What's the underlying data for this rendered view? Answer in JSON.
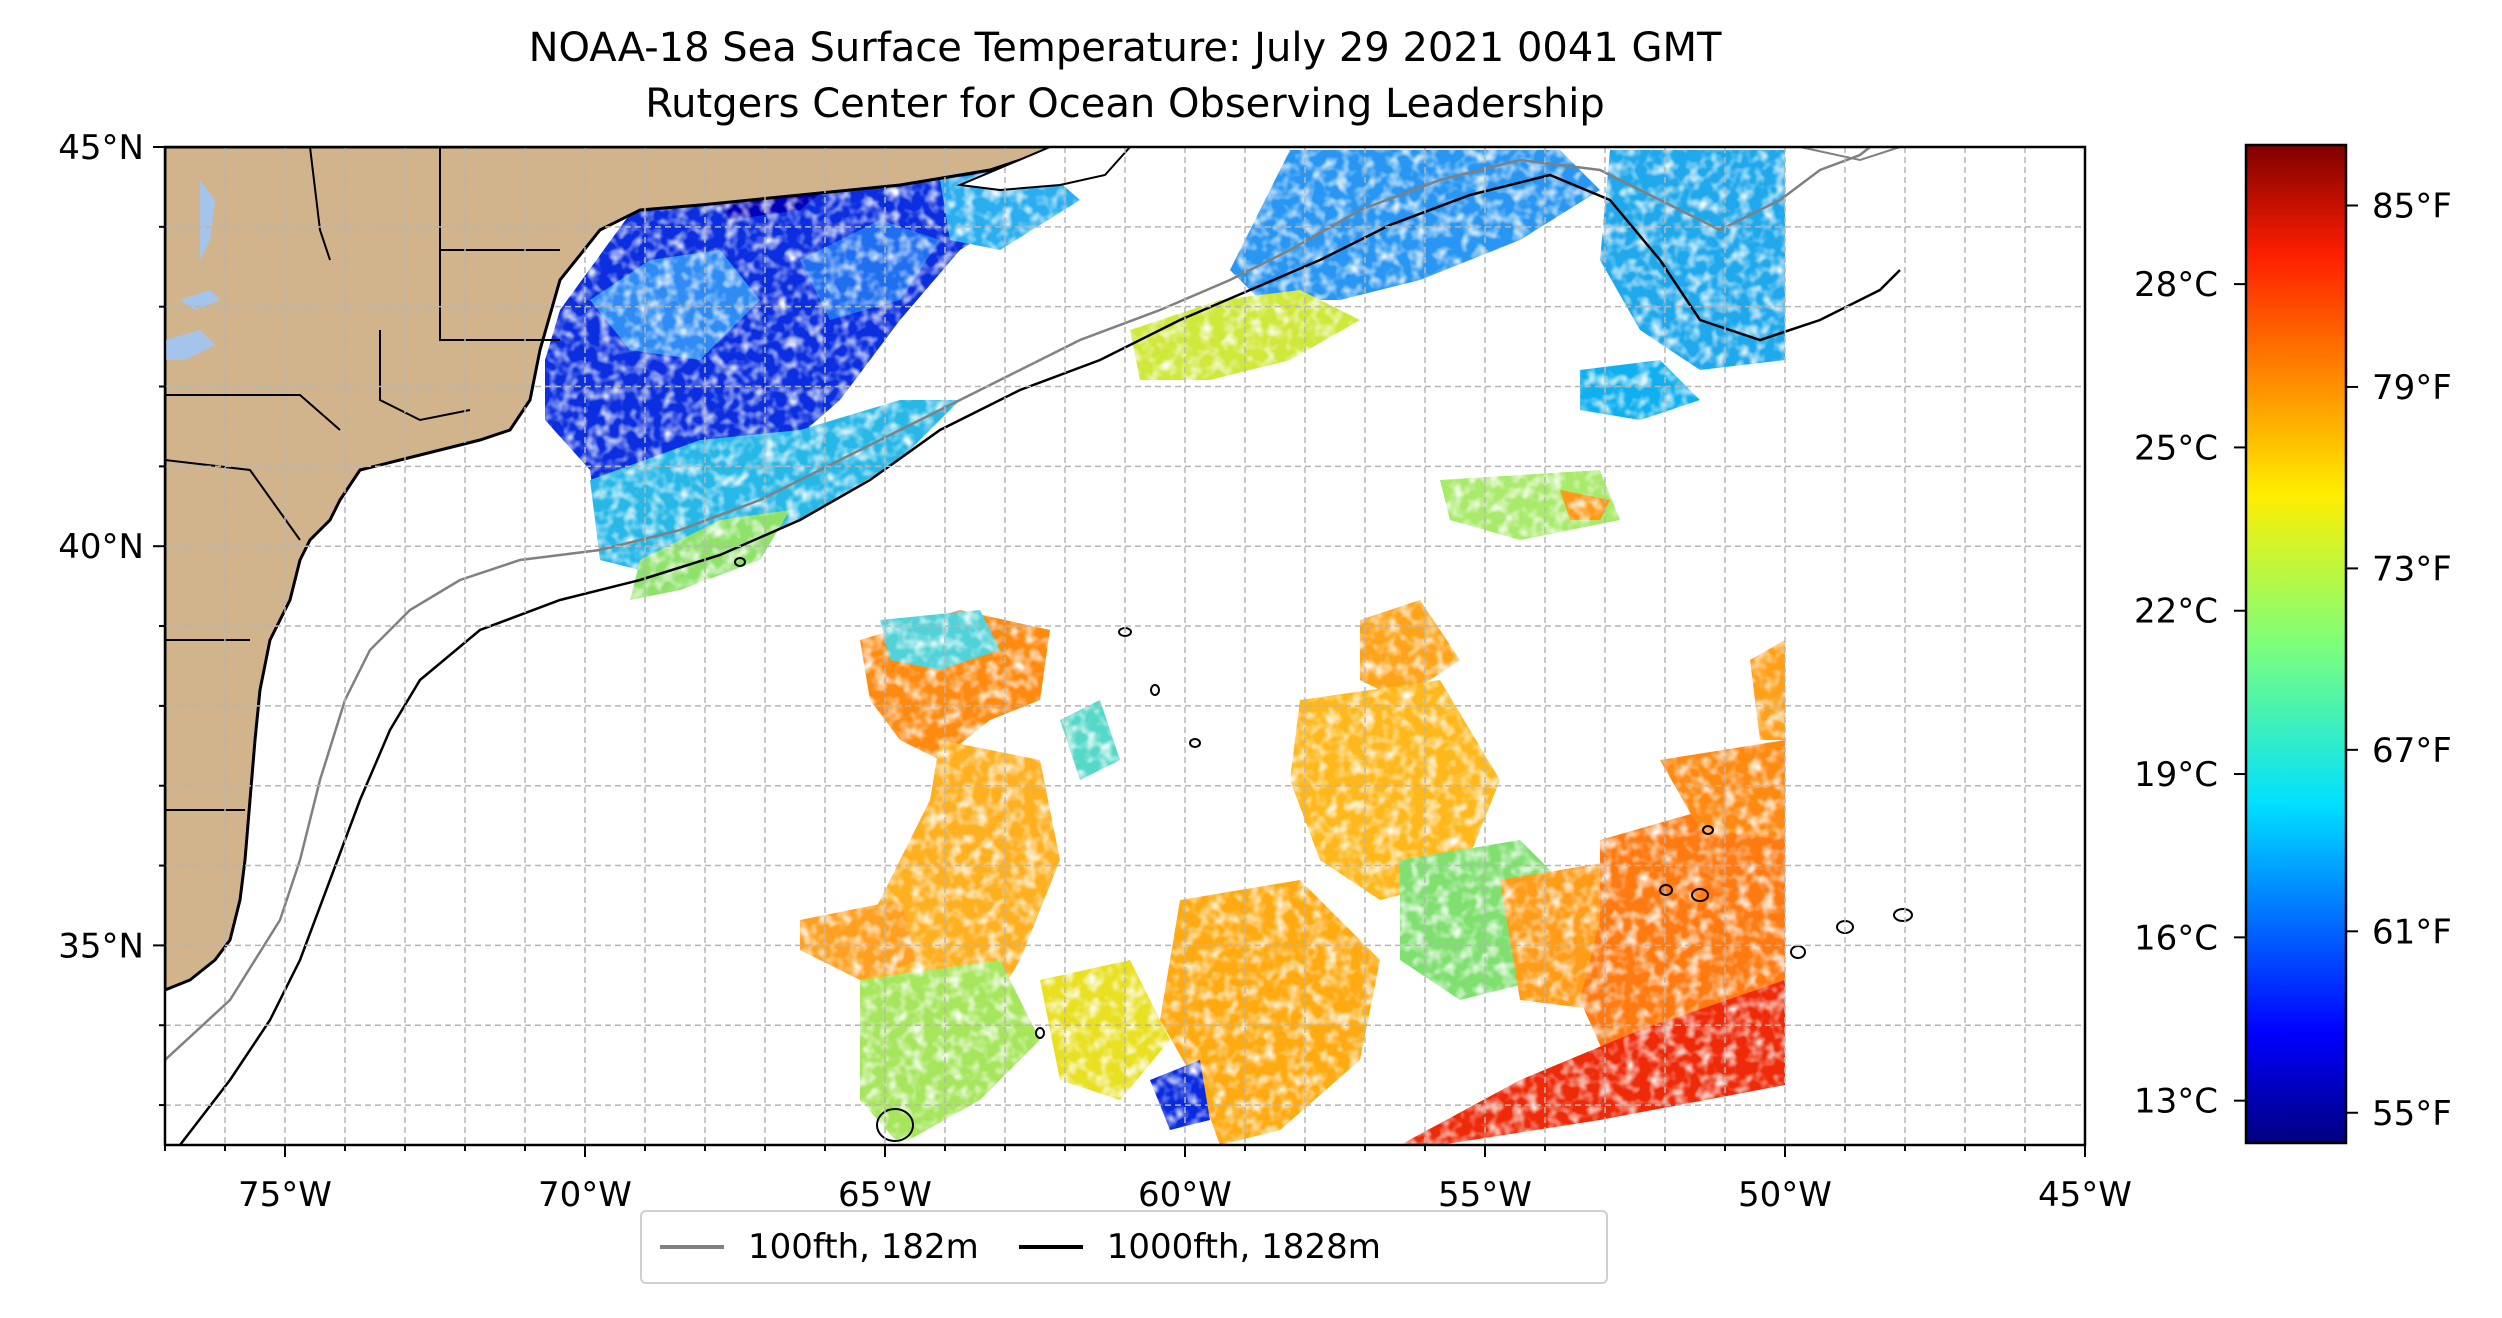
{
  "title": {
    "line1": "NOAA-18 Sea Surface Temperature: July 29 2021 0041 GMT",
    "line2": "Rutgers Center for Ocean Observing Leadership"
  },
  "map": {
    "lon_range": [
      -77,
      -45
    ],
    "lat_range": [
      32.5,
      45
    ],
    "lon_ticks": [
      {
        "value": -75,
        "label": "75°W"
      },
      {
        "value": -70,
        "label": "70°W"
      },
      {
        "value": -65,
        "label": "65°W"
      },
      {
        "value": -60,
        "label": "60°W"
      },
      {
        "value": -55,
        "label": "55°W"
      },
      {
        "value": -50,
        "label": "50°W"
      },
      {
        "value": -45,
        "label": "45°W"
      }
    ],
    "lat_ticks": [
      {
        "value": 35,
        "label": "35°N"
      },
      {
        "value": 40,
        "label": "40°N"
      },
      {
        "value": 45,
        "label": "45°N"
      }
    ],
    "gridlines": "dashed every 1 degree",
    "land_color": "#d2b48c",
    "lake_color": "#a4c4ec"
  },
  "colorbar": {
    "colormap": "jet",
    "range_f": [
      54,
      87
    ],
    "fahrenheit_ticks": [
      "55°F",
      "61°F",
      "67°F",
      "73°F",
      "79°F",
      "85°F"
    ],
    "celsius_ticks": [
      "13°C",
      "16°C",
      "19°C",
      "22°C",
      "25°C",
      "28°C"
    ]
  },
  "legend": {
    "items": [
      {
        "label": "100fth, 182m",
        "color": "#808080"
      },
      {
        "label": "1000fth, 1828m",
        "color": "#000000"
      }
    ]
  }
}
